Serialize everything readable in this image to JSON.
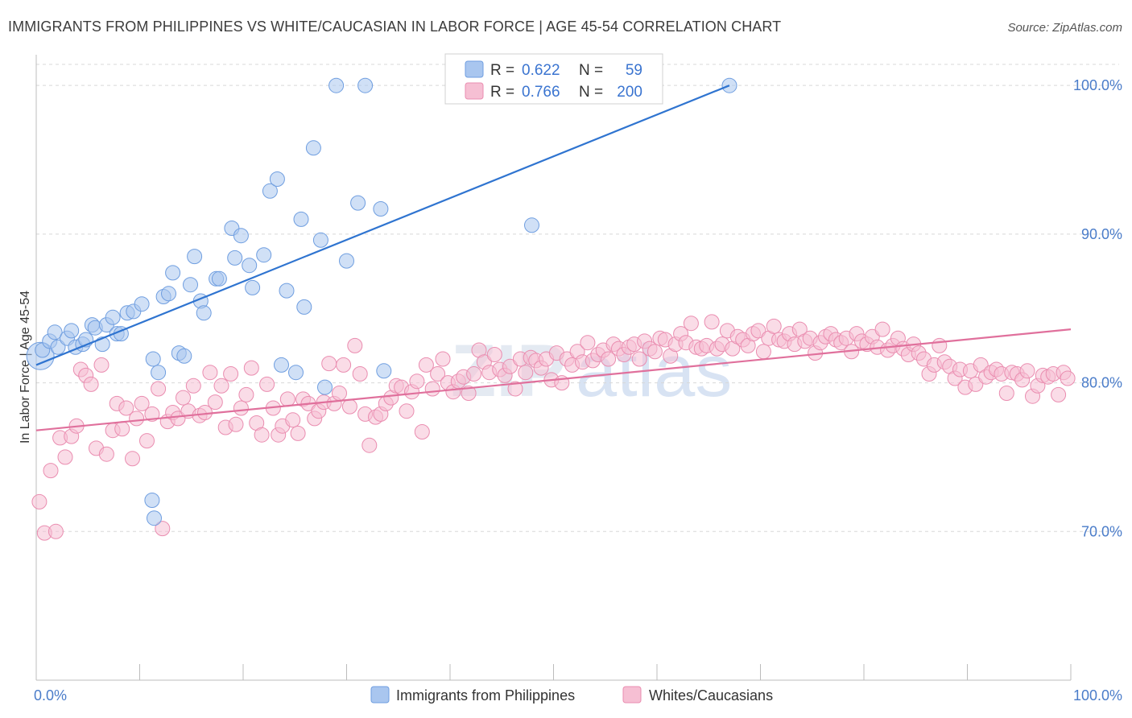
{
  "title": "IMMIGRANTS FROM PHILIPPINES VS WHITE/CAUCASIAN IN LABOR FORCE | AGE 45-54 CORRELATION CHART",
  "source": "Source: ZipAtlas.com",
  "watermark": {
    "zip": "ZIP",
    "atlas": "atlas"
  },
  "colors": {
    "blue_fill": "#a9c6ef",
    "blue_stroke": "#6f9ee0",
    "blue_line": "#2f74d0",
    "pink_fill": "#f6bfd3",
    "pink_stroke": "#ea8db0",
    "pink_line": "#e0709c",
    "grid": "#d8d8d8",
    "tick_text": "#4a7cc9"
  },
  "legend": {
    "rows": [
      {
        "r_label": "R = ",
        "r_value": "0.622",
        "n_label": "N = ",
        "n_value": "59"
      },
      {
        "r_label": "R = ",
        "r_value": "0.766",
        "n_label": "N = ",
        "n_value": "200"
      }
    ]
  },
  "bottom_legend": [
    "Immigrants from Philippines",
    "Whites/Caucasians"
  ],
  "chart_data": {
    "type": "scatter",
    "title": "IMMIGRANTS FROM PHILIPPINES VS WHITE/CAUCASIAN IN LABOR FORCE | AGE 45-54 CORRELATION CHART",
    "ylabel": "In Labor Force | Age 45-54",
    "xlabel": "",
    "xlim": [
      0,
      100
    ],
    "ylim": [
      60,
      102.5
    ],
    "x_tick_labels": [
      {
        "value": 0,
        "label": "0.0%"
      },
      {
        "value": 100,
        "label": "100.0%"
      }
    ],
    "y_tick_labels": [
      {
        "value": 100,
        "label": "100.0%"
      },
      {
        "value": 90,
        "label": "90.0%"
      },
      {
        "value": 80,
        "label": "80.0%"
      },
      {
        "value": 70,
        "label": "70.0%"
      }
    ],
    "gridlines_y": [
      100,
      90,
      80,
      70
    ],
    "grid": true,
    "legend_position": "top-center",
    "series": [
      {
        "name": "Immigrants from Philippines",
        "color": "#a9c6ef",
        "R": 0.622,
        "N": 59,
        "trend": {
          "x": [
            0,
            67
          ],
          "y": [
            81.2,
            100.0
          ]
        },
        "points": [
          [
            0.4,
            81.8
          ],
          [
            0.6,
            82.2
          ],
          [
            1.3,
            82.8
          ],
          [
            1.8,
            83.4
          ],
          [
            2.1,
            82.4
          ],
          [
            3.0,
            83.0
          ],
          [
            3.4,
            83.5
          ],
          [
            3.8,
            82.4
          ],
          [
            4.5,
            82.6
          ],
          [
            4.8,
            82.9
          ],
          [
            5.4,
            83.9
          ],
          [
            5.7,
            83.7
          ],
          [
            6.4,
            82.6
          ],
          [
            6.8,
            83.9
          ],
          [
            7.4,
            84.4
          ],
          [
            7.8,
            83.3
          ],
          [
            8.2,
            83.3
          ],
          [
            8.8,
            84.7
          ],
          [
            9.4,
            84.8
          ],
          [
            10.2,
            85.3
          ],
          [
            11.3,
            81.6
          ],
          [
            11.8,
            80.7
          ],
          [
            12.3,
            85.8
          ],
          [
            12.8,
            86.0
          ],
          [
            13.2,
            87.4
          ],
          [
            13.8,
            82.0
          ],
          [
            14.3,
            81.8
          ],
          [
            14.9,
            86.6
          ],
          [
            15.3,
            88.5
          ],
          [
            15.9,
            85.5
          ],
          [
            16.2,
            84.7
          ],
          [
            17.4,
            87.0
          ],
          [
            17.7,
            87.0
          ],
          [
            18.9,
            90.4
          ],
          [
            19.2,
            88.4
          ],
          [
            19.8,
            89.9
          ],
          [
            20.6,
            87.9
          ],
          [
            20.9,
            86.4
          ],
          [
            22.0,
            88.6
          ],
          [
            22.6,
            92.9
          ],
          [
            23.3,
            93.7
          ],
          [
            23.7,
            81.2
          ],
          [
            24.2,
            86.2
          ],
          [
            25.1,
            80.7
          ],
          [
            25.6,
            91.0
          ],
          [
            25.9,
            85.1
          ],
          [
            26.8,
            95.8
          ],
          [
            27.5,
            89.6
          ],
          [
            27.9,
            79.7
          ],
          [
            29.0,
            100.0
          ],
          [
            30.0,
            88.2
          ],
          [
            31.1,
            92.1
          ],
          [
            31.8,
            100.0
          ],
          [
            33.3,
            91.7
          ],
          [
            33.6,
            80.8
          ],
          [
            11.2,
            72.1
          ],
          [
            11.4,
            70.9
          ],
          [
            47.9,
            90.6
          ],
          [
            67.0,
            100.0
          ]
        ]
      },
      {
        "name": "Whites/Caucasians",
        "color": "#f6bfd3",
        "R": 0.766,
        "N": 200,
        "trend": {
          "x": [
            0,
            100
          ],
          "y": [
            76.8,
            83.6
          ]
        },
        "points": [
          [
            0.3,
            72.0
          ],
          [
            0.8,
            69.9
          ],
          [
            1.4,
            74.1
          ],
          [
            1.9,
            70.0
          ],
          [
            2.3,
            76.3
          ],
          [
            2.8,
            75.0
          ],
          [
            3.4,
            76.4
          ],
          [
            3.9,
            77.1
          ],
          [
            4.3,
            80.9
          ],
          [
            4.8,
            80.5
          ],
          [
            5.3,
            79.9
          ],
          [
            5.8,
            75.6
          ],
          [
            6.3,
            81.2
          ],
          [
            6.8,
            75.2
          ],
          [
            7.4,
            76.8
          ],
          [
            7.8,
            78.6
          ],
          [
            8.3,
            76.9
          ],
          [
            8.7,
            78.3
          ],
          [
            9.3,
            74.9
          ],
          [
            9.7,
            77.6
          ],
          [
            10.2,
            78.6
          ],
          [
            10.7,
            76.1
          ],
          [
            11.2,
            77.9
          ],
          [
            11.8,
            79.6
          ],
          [
            12.2,
            70.2
          ],
          [
            12.7,
            77.4
          ],
          [
            13.2,
            78.0
          ],
          [
            13.7,
            77.6
          ],
          [
            14.2,
            79.0
          ],
          [
            14.7,
            78.1
          ],
          [
            15.2,
            79.8
          ],
          [
            15.8,
            77.8
          ],
          [
            16.3,
            78.0
          ],
          [
            16.8,
            80.7
          ],
          [
            17.3,
            78.7
          ],
          [
            17.9,
            79.8
          ],
          [
            18.3,
            77.0
          ],
          [
            18.8,
            80.6
          ],
          [
            19.3,
            77.2
          ],
          [
            19.8,
            78.3
          ],
          [
            20.3,
            79.2
          ],
          [
            20.8,
            81.0
          ],
          [
            21.3,
            77.3
          ],
          [
            21.8,
            76.5
          ],
          [
            22.3,
            79.9
          ],
          [
            22.9,
            78.3
          ],
          [
            23.4,
            76.5
          ],
          [
            23.8,
            77.1
          ],
          [
            24.3,
            78.9
          ],
          [
            24.8,
            77.5
          ],
          [
            25.3,
            76.6
          ],
          [
            25.8,
            78.9
          ],
          [
            26.3,
            78.6
          ],
          [
            26.9,
            77.6
          ],
          [
            27.3,
            78.1
          ],
          [
            27.8,
            78.7
          ],
          [
            28.3,
            81.3
          ],
          [
            28.8,
            78.6
          ],
          [
            29.3,
            79.3
          ],
          [
            29.7,
            81.2
          ],
          [
            30.3,
            78.4
          ],
          [
            30.8,
            82.5
          ],
          [
            31.3,
            80.6
          ],
          [
            31.8,
            77.9
          ],
          [
            32.2,
            75.8
          ],
          [
            32.8,
            77.7
          ],
          [
            33.3,
            77.9
          ],
          [
            33.8,
            78.6
          ],
          [
            34.3,
            79.0
          ],
          [
            34.8,
            79.8
          ],
          [
            35.3,
            79.7
          ],
          [
            35.8,
            78.1
          ],
          [
            36.3,
            79.4
          ],
          [
            36.8,
            80.1
          ],
          [
            37.3,
            76.7
          ],
          [
            37.7,
            81.2
          ],
          [
            38.3,
            79.6
          ],
          [
            38.8,
            80.6
          ],
          [
            39.3,
            81.6
          ],
          [
            39.8,
            80.0
          ],
          [
            40.3,
            79.4
          ],
          [
            40.8,
            80.1
          ],
          [
            41.3,
            80.4
          ],
          [
            41.8,
            79.3
          ],
          [
            42.3,
            80.6
          ],
          [
            42.8,
            82.2
          ],
          [
            43.3,
            81.4
          ],
          [
            43.8,
            80.7
          ],
          [
            44.3,
            81.9
          ],
          [
            44.8,
            80.9
          ],
          [
            45.3,
            80.5
          ],
          [
            45.8,
            81.1
          ],
          [
            46.3,
            79.6
          ],
          [
            46.8,
            81.6
          ],
          [
            47.3,
            80.7
          ],
          [
            47.8,
            81.7
          ],
          [
            48.3,
            81.5
          ],
          [
            48.8,
            81.0
          ],
          [
            49.3,
            81.6
          ],
          [
            49.8,
            80.2
          ],
          [
            50.3,
            82.0
          ],
          [
            50.8,
            80.0
          ],
          [
            51.3,
            81.6
          ],
          [
            51.8,
            81.2
          ],
          [
            52.3,
            82.1
          ],
          [
            52.8,
            81.4
          ],
          [
            53.3,
            82.7
          ],
          [
            53.8,
            81.5
          ],
          [
            54.3,
            81.9
          ],
          [
            54.8,
            82.2
          ],
          [
            55.3,
            81.6
          ],
          [
            55.8,
            82.6
          ],
          [
            56.3,
            82.3
          ],
          [
            56.8,
            81.9
          ],
          [
            57.3,
            82.4
          ],
          [
            57.8,
            82.6
          ],
          [
            58.3,
            81.6
          ],
          [
            58.8,
            82.8
          ],
          [
            59.3,
            82.3
          ],
          [
            59.8,
            82.1
          ],
          [
            60.3,
            83.0
          ],
          [
            60.8,
            82.9
          ],
          [
            61.3,
            81.8
          ],
          [
            61.8,
            82.6
          ],
          [
            62.3,
            83.3
          ],
          [
            62.8,
            82.7
          ],
          [
            63.3,
            84.0
          ],
          [
            63.8,
            82.4
          ],
          [
            64.3,
            82.3
          ],
          [
            64.8,
            82.5
          ],
          [
            65.3,
            84.1
          ],
          [
            65.8,
            82.3
          ],
          [
            66.3,
            82.6
          ],
          [
            66.8,
            83.5
          ],
          [
            67.3,
            82.3
          ],
          [
            67.8,
            83.1
          ],
          [
            68.3,
            82.9
          ],
          [
            68.8,
            82.5
          ],
          [
            69.3,
            83.3
          ],
          [
            69.8,
            83.5
          ],
          [
            70.3,
            82.1
          ],
          [
            70.8,
            83.0
          ],
          [
            71.3,
            83.8
          ],
          [
            71.8,
            82.9
          ],
          [
            72.3,
            82.8
          ],
          [
            72.8,
            83.3
          ],
          [
            73.3,
            82.6
          ],
          [
            73.8,
            83.6
          ],
          [
            74.3,
            82.8
          ],
          [
            74.8,
            83.0
          ],
          [
            75.3,
            82.0
          ],
          [
            75.8,
            82.7
          ],
          [
            76.3,
            83.1
          ],
          [
            76.8,
            83.3
          ],
          [
            77.3,
            82.9
          ],
          [
            77.8,
            82.7
          ],
          [
            78.3,
            83.0
          ],
          [
            78.8,
            82.1
          ],
          [
            79.3,
            83.3
          ],
          [
            79.8,
            82.8
          ],
          [
            80.3,
            82.6
          ],
          [
            80.8,
            83.1
          ],
          [
            81.3,
            82.4
          ],
          [
            81.8,
            83.6
          ],
          [
            82.3,
            82.2
          ],
          [
            82.8,
            82.5
          ],
          [
            83.3,
            83.0
          ],
          [
            83.8,
            82.3
          ],
          [
            84.3,
            81.9
          ],
          [
            84.8,
            82.6
          ],
          [
            85.3,
            82.0
          ],
          [
            85.8,
            81.6
          ],
          [
            86.3,
            80.6
          ],
          [
            86.8,
            81.2
          ],
          [
            87.3,
            82.5
          ],
          [
            87.8,
            81.4
          ],
          [
            88.3,
            81.1
          ],
          [
            88.8,
            80.3
          ],
          [
            89.3,
            80.9
          ],
          [
            89.8,
            79.7
          ],
          [
            90.3,
            80.8
          ],
          [
            90.8,
            79.9
          ],
          [
            91.3,
            81.2
          ],
          [
            91.8,
            80.4
          ],
          [
            92.3,
            80.7
          ],
          [
            92.8,
            80.9
          ],
          [
            93.3,
            80.6
          ],
          [
            93.8,
            79.3
          ],
          [
            94.3,
            80.7
          ],
          [
            94.8,
            80.6
          ],
          [
            95.3,
            80.2
          ],
          [
            95.8,
            80.8
          ],
          [
            96.3,
            79.1
          ],
          [
            96.8,
            79.8
          ],
          [
            97.3,
            80.5
          ],
          [
            97.8,
            80.4
          ],
          [
            98.3,
            80.6
          ],
          [
            98.8,
            79.2
          ],
          [
            99.3,
            80.7
          ],
          [
            99.7,
            80.3
          ]
        ]
      }
    ]
  }
}
